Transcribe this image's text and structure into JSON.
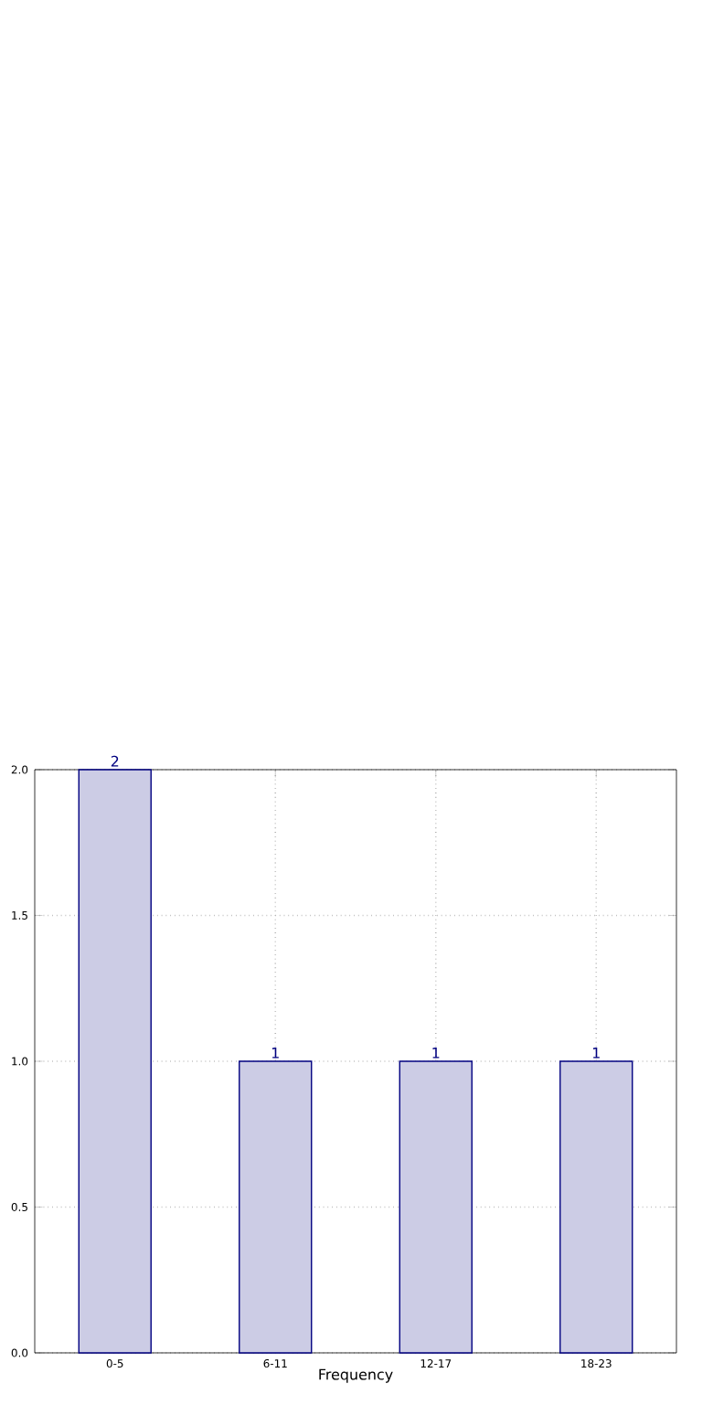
{
  "chart_data": {
    "type": "bar",
    "xlabel": "Frequency",
    "categories": [
      "0-5",
      "6-11",
      "12-17",
      "18-23"
    ],
    "values": [
      2,
      1,
      1,
      1
    ],
    "color": "#cccce5",
    "ylim": [
      0,
      2
    ],
    "yticks": [
      {
        "value": 0,
        "label": "0.0"
      },
      {
        "value": 0.5,
        "label": "0.5"
      },
      {
        "value": 1,
        "label": "1.0"
      },
      {
        "value": 1.5,
        "label": "1.5"
      },
      {
        "value": 2,
        "label": "2.0"
      }
    ],
    "grid": true,
    "data_labels": true
  }
}
